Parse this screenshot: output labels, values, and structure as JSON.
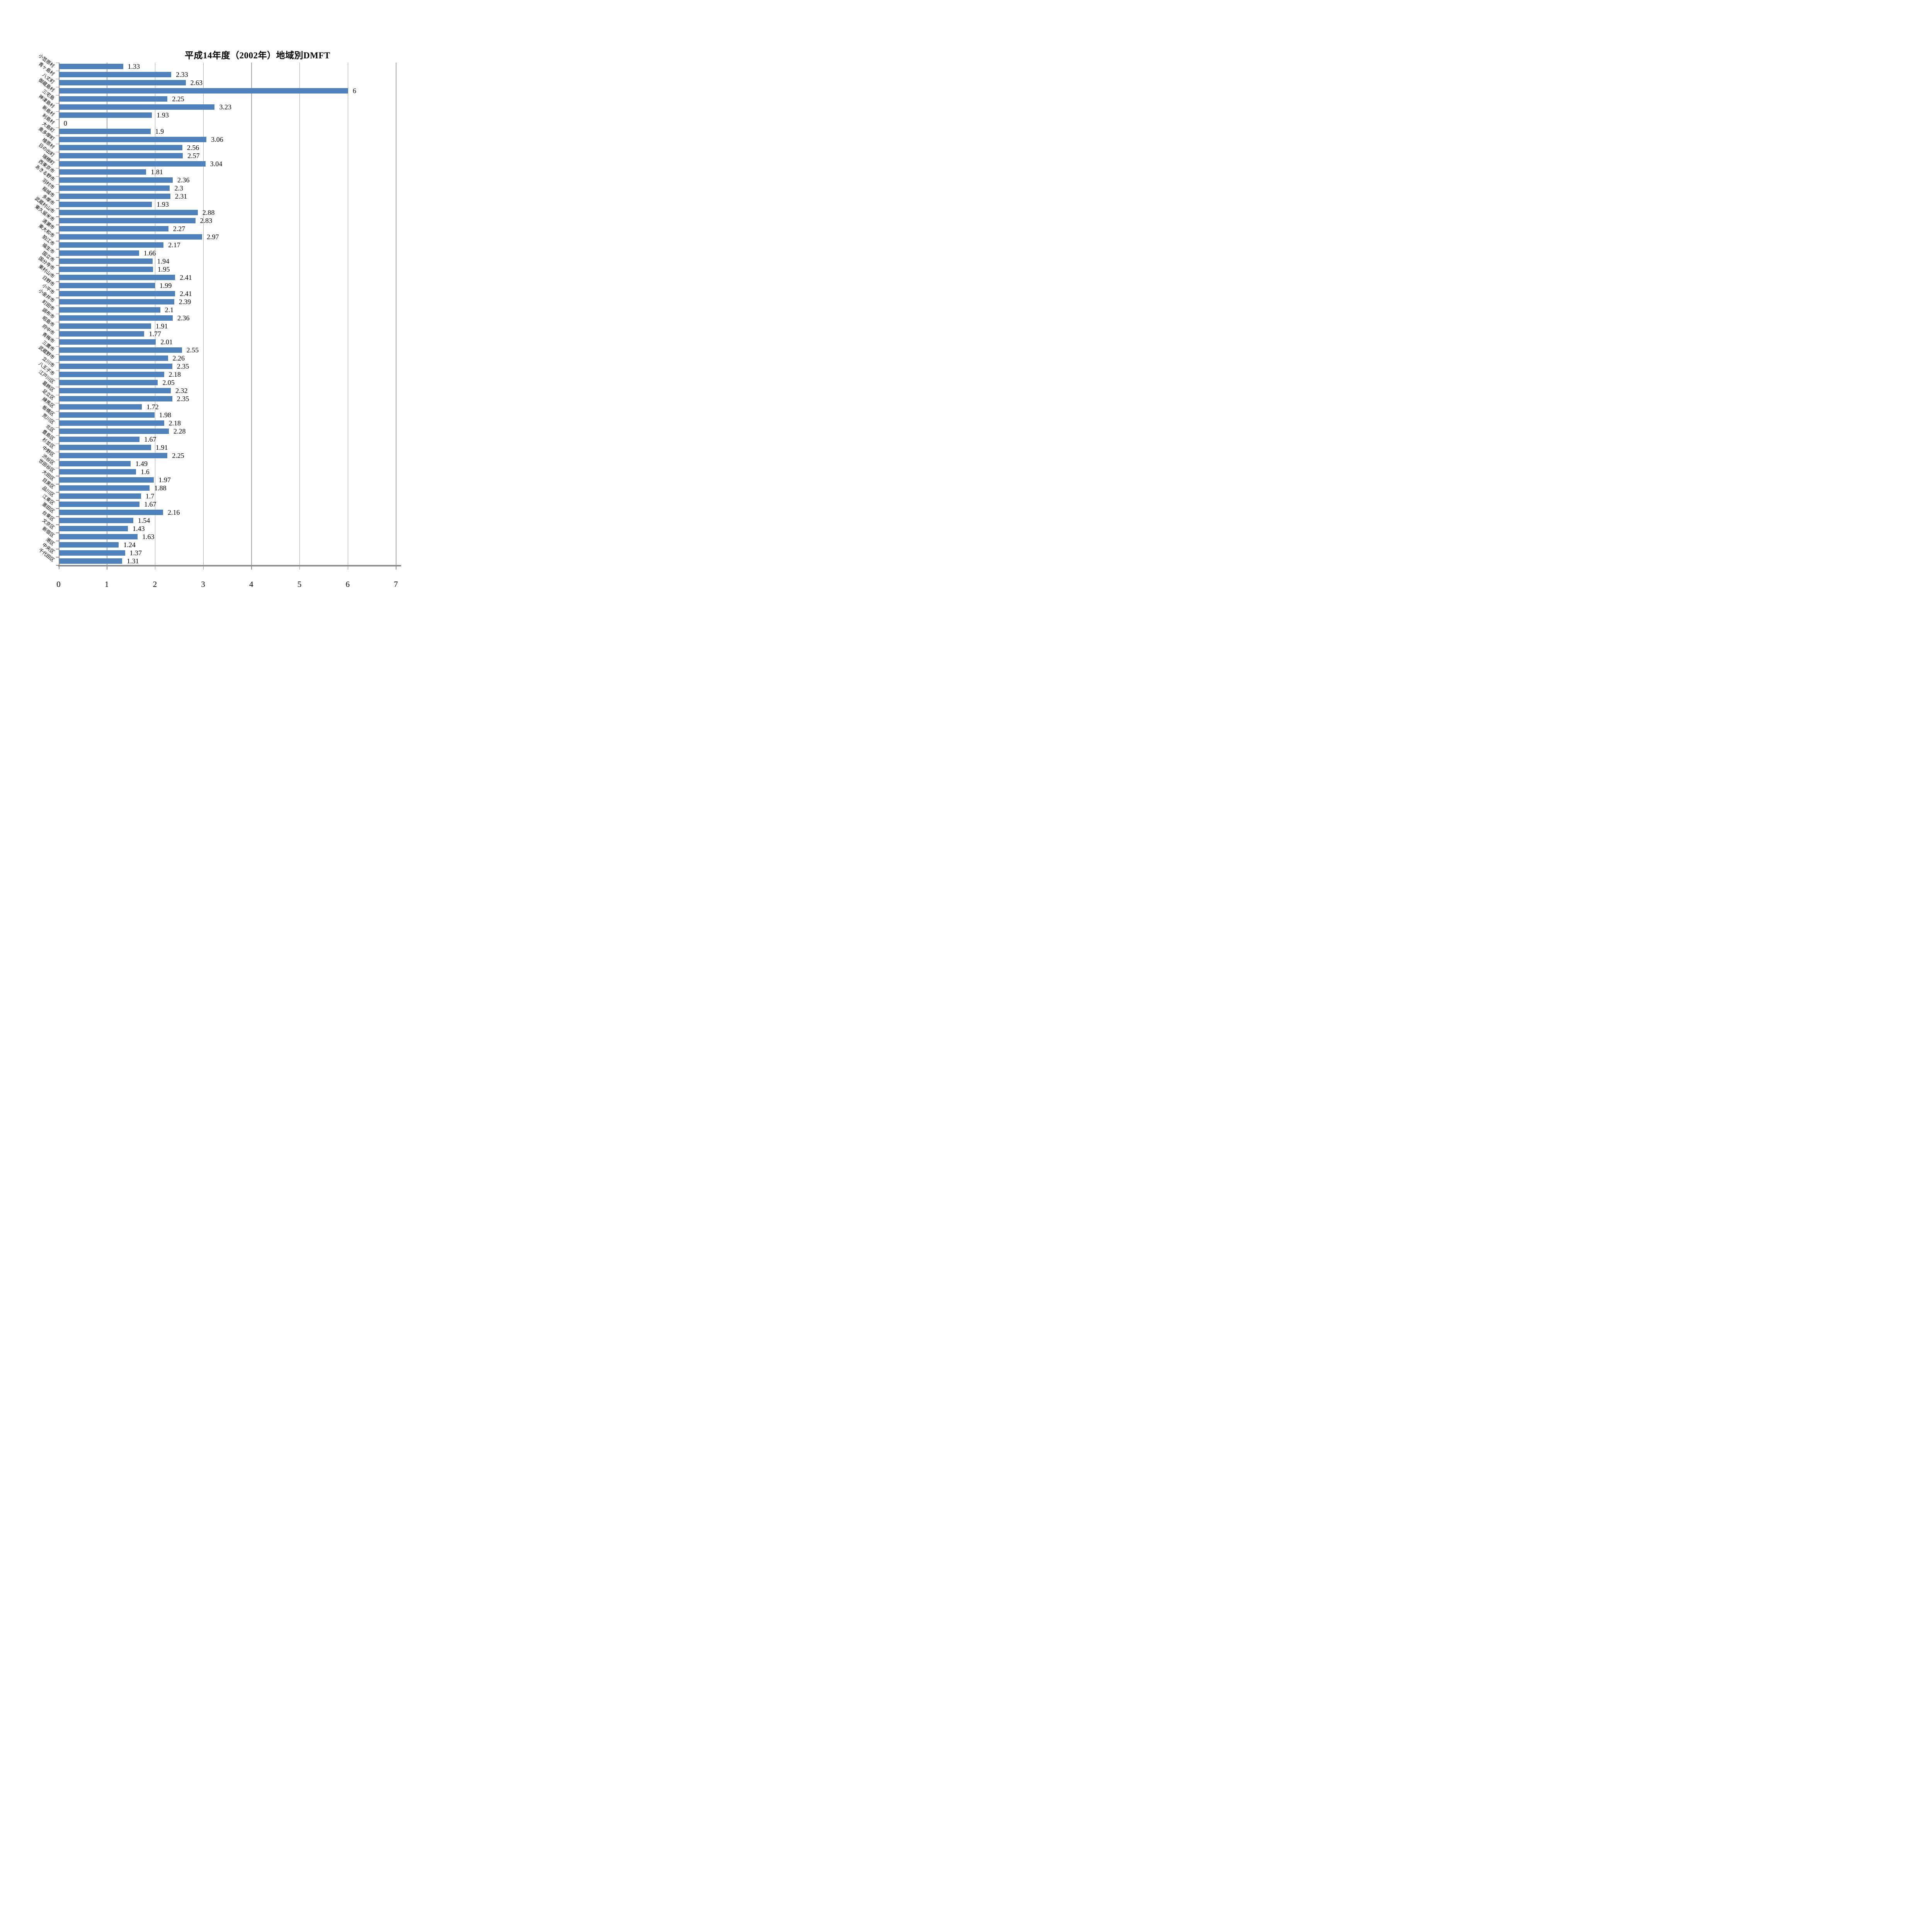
{
  "title": "平成14年度（2002年）地域別DMFT",
  "colors": {
    "bar": "#4F81BD",
    "gridline": "#A6A6A6",
    "axis": "#8C8C8C",
    "text": "#000000",
    "background": "#FFFFFF"
  },
  "chart_data": {
    "type": "bar",
    "orientation": "horizontal",
    "title": "平成14年度（2002年）地域別DMFT",
    "xlabel": "",
    "ylabel": "",
    "xlim": [
      0,
      7
    ],
    "x_ticks": [
      "0",
      "1",
      "2",
      "3",
      "4",
      "5",
      "6",
      "7"
    ],
    "grid": true,
    "legend": false,
    "categories": [
      "小笠原村",
      "青ヶ島村",
      "八丈町",
      "御蔵島村",
      "三宅島",
      "神津島村",
      "新島村",
      "利島村",
      "大島町",
      "奥多摩町",
      "檜原村",
      "日の出町",
      "瑞穂町",
      "西東京市",
      "あきる野市",
      "羽村市",
      "稲城市",
      "多摩市",
      "武蔵村山市",
      "東久留米市",
      "清瀬市",
      "東大和市",
      "狛江市",
      "福生市",
      "国立市",
      "国分寺市",
      "東村山市",
      "日野市",
      "小平市",
      "小金井市",
      "町田市",
      "調布市",
      "昭島市",
      "府中市",
      "青梅市",
      "三鷹市",
      "武蔵野市",
      "立川市",
      "八王子市",
      "江戸川区",
      "葛飾区",
      "足立区",
      "練馬区",
      "板橋区",
      "荒川区",
      "北区",
      "豊島区",
      "杉並区",
      "中野区",
      "渋谷区",
      "世田谷区",
      "大田区",
      "目黒区",
      "品川区",
      "江東区",
      "墨田区",
      "台東区",
      "文京区",
      "新宿区",
      "港区",
      "中央区",
      "千代田区"
    ],
    "values": [
      1.33,
      2.33,
      2.63,
      6,
      2.25,
      3.23,
      1.93,
      0,
      1.9,
      3.06,
      2.56,
      2.57,
      3.04,
      1.81,
      2.36,
      2.3,
      2.31,
      1.93,
      2.88,
      2.83,
      2.27,
      2.97,
      2.17,
      1.66,
      1.94,
      1.95,
      2.41,
      1.99,
      2.41,
      2.39,
      2.1,
      2.36,
      1.91,
      1.77,
      2.01,
      2.55,
      2.26,
      2.35,
      2.18,
      2.05,
      2.32,
      2.35,
      1.72,
      1.98,
      2.18,
      2.28,
      1.67,
      1.91,
      2.25,
      1.49,
      1.6,
      1.97,
      1.88,
      1.7,
      1.67,
      2.16,
      1.54,
      1.43,
      1.63,
      1.24,
      1.37,
      1.31
    ],
    "display_values": [
      "1.33",
      "2.33",
      "2.63",
      "6",
      "2.25",
      "3.23",
      "1.93",
      "0",
      "1.9",
      "3.06",
      "2.56",
      "2.57",
      "3.04",
      "1.81",
      "2.36",
      "2.3",
      "2.31",
      "1.93",
      "2.88",
      "2.83",
      "2.27",
      "2.97",
      "2.17",
      "1.66",
      "1.94",
      "1.95",
      "2.41",
      "1.99",
      "2.41",
      "2.39",
      "2.1",
      "2.36",
      "1.91",
      "1.77",
      "2.01",
      "2.55",
      "2.26",
      "2.35",
      "2.18",
      "2.05",
      "2.32",
      "2.35",
      "1.72",
      "1.98",
      "2.18",
      "2.28",
      "1.67",
      "1.91",
      "2.25",
      "1.49",
      "1.6",
      "1.97",
      "1.88",
      "1.7",
      "1.67",
      "2.16",
      "1.54",
      "1.43",
      "1.63",
      "1.24",
      "1.37",
      "1.31"
    ]
  }
}
